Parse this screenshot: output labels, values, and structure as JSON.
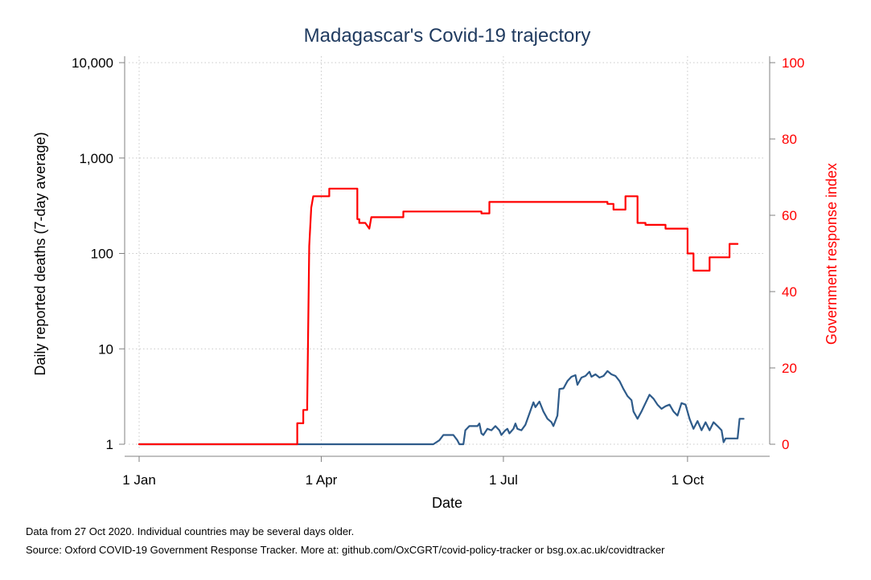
{
  "chart_data": {
    "type": "line",
    "title": "Madagascar's Covid-19 trajectory",
    "xlabel": "Date",
    "ylabel": "Daily reported deaths (7-day average)",
    "y2label": "Government response index",
    "y_scale": "log",
    "ylim": [
      1,
      10000
    ],
    "y2lim": [
      0,
      100
    ],
    "grid": true,
    "x_ticks": [
      "1 Jan",
      "1 Apr",
      "1 Jul",
      "1 Oct"
    ],
    "x_tick_dates": [
      "2020-01-01",
      "2020-04-01",
      "2020-07-01",
      "2020-10-01"
    ],
    "y_ticks": [
      "1",
      "10",
      "100",
      "1,000",
      "10,000"
    ],
    "y_tick_values": [
      1,
      10,
      100,
      1000,
      10000
    ],
    "y2_ticks": [
      "0",
      "20",
      "40",
      "60",
      "80",
      "100"
    ],
    "y2_tick_values": [
      0,
      20,
      40,
      60,
      80,
      100
    ],
    "colors": {
      "deaths": "#2e5b8a",
      "response": "#ff0000",
      "grid": "#c8c8c8",
      "axis": "#808080"
    },
    "series": [
      {
        "name": "",
        "axis": "left",
        "color": "#2e5b8a",
        "points": [
          [
            "2020-01-01",
            1
          ],
          [
            "2020-05-27",
            1
          ],
          [
            "2020-05-30",
            1.1
          ],
          [
            "2020-06-01",
            1.25
          ],
          [
            "2020-06-06",
            1.25
          ],
          [
            "2020-06-08",
            1.1
          ],
          [
            "2020-06-09",
            1.0
          ],
          [
            "2020-06-11",
            1.0
          ],
          [
            "2020-06-12",
            1.4
          ],
          [
            "2020-06-14",
            1.55
          ],
          [
            "2020-06-18",
            1.55
          ],
          [
            "2020-06-19",
            1.65
          ],
          [
            "2020-06-20",
            1.3
          ],
          [
            "2020-06-21",
            1.25
          ],
          [
            "2020-06-23",
            1.45
          ],
          [
            "2020-06-25",
            1.4
          ],
          [
            "2020-06-27",
            1.55
          ],
          [
            "2020-06-29",
            1.4
          ],
          [
            "2020-06-30",
            1.25
          ],
          [
            "2020-07-02",
            1.4
          ],
          [
            "2020-07-03",
            1.45
          ],
          [
            "2020-07-04",
            1.3
          ],
          [
            "2020-07-06",
            1.45
          ],
          [
            "2020-07-07",
            1.65
          ],
          [
            "2020-07-08",
            1.45
          ],
          [
            "2020-07-10",
            1.4
          ],
          [
            "2020-07-12",
            1.6
          ],
          [
            "2020-07-14",
            2.1
          ],
          [
            "2020-07-16",
            2.75
          ],
          [
            "2020-07-17",
            2.45
          ],
          [
            "2020-07-19",
            2.8
          ],
          [
            "2020-07-21",
            2.2
          ],
          [
            "2020-07-23",
            1.85
          ],
          [
            "2020-07-25",
            1.7
          ],
          [
            "2020-07-26",
            1.55
          ],
          [
            "2020-07-28",
            2.0
          ],
          [
            "2020-07-29",
            3.8
          ],
          [
            "2020-07-31",
            3.85
          ],
          [
            "2020-08-02",
            4.6
          ],
          [
            "2020-08-04",
            5.1
          ],
          [
            "2020-08-06",
            5.3
          ],
          [
            "2020-08-07",
            4.2
          ],
          [
            "2020-08-09",
            5.0
          ],
          [
            "2020-08-11",
            5.2
          ],
          [
            "2020-08-13",
            5.75
          ],
          [
            "2020-08-14",
            5.1
          ],
          [
            "2020-08-16",
            5.4
          ],
          [
            "2020-08-18",
            5.0
          ],
          [
            "2020-08-20",
            5.2
          ],
          [
            "2020-08-22",
            5.85
          ],
          [
            "2020-08-24",
            5.4
          ],
          [
            "2020-08-26",
            5.2
          ],
          [
            "2020-08-28",
            4.6
          ],
          [
            "2020-08-30",
            3.8
          ],
          [
            "2020-09-01",
            3.2
          ],
          [
            "2020-09-03",
            2.9
          ],
          [
            "2020-09-04",
            2.2
          ],
          [
            "2020-09-06",
            1.85
          ],
          [
            "2020-09-08",
            2.2
          ],
          [
            "2020-09-10",
            2.7
          ],
          [
            "2020-09-12",
            3.3
          ],
          [
            "2020-09-14",
            3.0
          ],
          [
            "2020-09-16",
            2.6
          ],
          [
            "2020-09-18",
            2.35
          ],
          [
            "2020-09-20",
            2.5
          ],
          [
            "2020-09-22",
            2.6
          ],
          [
            "2020-09-24",
            2.2
          ],
          [
            "2020-09-26",
            2.0
          ],
          [
            "2020-09-28",
            2.7
          ],
          [
            "2020-09-30",
            2.6
          ],
          [
            "2020-10-02",
            1.85
          ],
          [
            "2020-10-04",
            1.45
          ],
          [
            "2020-10-06",
            1.75
          ],
          [
            "2020-10-08",
            1.4
          ],
          [
            "2020-10-10",
            1.7
          ],
          [
            "2020-10-12",
            1.4
          ],
          [
            "2020-10-14",
            1.7
          ],
          [
            "2020-10-16",
            1.55
          ],
          [
            "2020-10-18",
            1.4
          ],
          [
            "2020-10-19",
            1.05
          ],
          [
            "2020-10-20",
            1.15
          ],
          [
            "2020-10-26",
            1.15
          ],
          [
            "2020-10-27",
            1.85
          ],
          [
            "2020-10-29",
            1.85
          ]
        ]
      },
      {
        "name": "",
        "axis": "right",
        "color": "#ff0000",
        "points": [
          [
            "2020-01-01",
            0
          ],
          [
            "2020-03-20",
            0
          ],
          [
            "2020-03-20",
            5.5
          ],
          [
            "2020-03-23",
            5.5
          ],
          [
            "2020-03-23",
            9
          ],
          [
            "2020-03-25",
            9
          ],
          [
            "2020-03-25",
            10.5
          ],
          [
            "2020-03-26",
            52
          ],
          [
            "2020-03-27",
            62
          ],
          [
            "2020-03-28",
            65
          ],
          [
            "2020-04-05",
            65
          ],
          [
            "2020-04-05",
            67
          ],
          [
            "2020-04-19",
            67
          ],
          [
            "2020-04-19",
            59
          ],
          [
            "2020-04-20",
            59
          ],
          [
            "2020-04-20",
            58
          ],
          [
            "2020-04-23",
            58
          ],
          [
            "2020-04-25",
            56.5
          ],
          [
            "2020-04-26",
            59.5
          ],
          [
            "2020-05-12",
            59.5
          ],
          [
            "2020-05-12",
            61
          ],
          [
            "2020-06-20",
            61
          ],
          [
            "2020-06-20",
            60.5
          ],
          [
            "2020-06-24",
            60.5
          ],
          [
            "2020-06-24",
            63.5
          ],
          [
            "2020-08-22",
            63.5
          ],
          [
            "2020-08-22",
            63
          ],
          [
            "2020-08-25",
            63
          ],
          [
            "2020-08-25",
            61.5
          ],
          [
            "2020-08-31",
            61.5
          ],
          [
            "2020-08-31",
            65
          ],
          [
            "2020-09-06",
            65
          ],
          [
            "2020-09-06",
            58
          ],
          [
            "2020-09-10",
            58
          ],
          [
            "2020-09-10",
            57.5
          ],
          [
            "2020-09-20",
            57.5
          ],
          [
            "2020-09-20",
            56.5
          ],
          [
            "2020-10-01",
            56.5
          ],
          [
            "2020-10-01",
            50
          ],
          [
            "2020-10-04",
            50
          ],
          [
            "2020-10-04",
            45.5
          ],
          [
            "2020-10-12",
            45.5
          ],
          [
            "2020-10-12",
            49
          ],
          [
            "2020-10-22",
            49
          ],
          [
            "2020-10-22",
            52.5
          ],
          [
            "2020-10-26",
            52.5
          ]
        ]
      }
    ]
  },
  "footnotes": {
    "line1": "Data from 27 Oct 2020. Individual countries may be several days older.",
    "line2": "Source: Oxford COVID-19 Government Response Tracker. More at: github.com/OxCGRT/covid-policy-tracker or bsg.ox.ac.uk/covidtracker"
  }
}
